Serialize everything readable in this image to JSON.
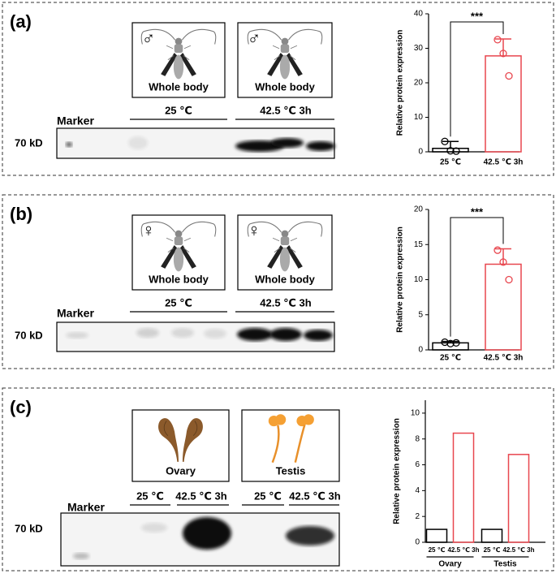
{
  "panels": [
    {
      "label": "(a)",
      "images": [
        {
          "symbol": "♂",
          "caption": "Whole body"
        },
        {
          "symbol": "♂",
          "caption": "Whole body"
        }
      ],
      "marker": "Marker",
      "size": "70 kD",
      "conditions": [
        "25 ℃",
        "42.5 ℃ 3h"
      ]
    },
    {
      "label": "(b)",
      "images": [
        {
          "symbol": "♀",
          "caption": "Whole body"
        },
        {
          "symbol": "♀",
          "caption": "Whole body"
        }
      ],
      "marker": "Marker",
      "size": "70 kD",
      "conditions": [
        "25 ℃",
        "42.5 ℃ 3h"
      ]
    },
    {
      "label": "(c)",
      "images": [
        {
          "caption": "Ovary"
        },
        {
          "caption": "Testis"
        }
      ],
      "marker": "Marker",
      "size": "70 kD",
      "conditions": [
        "25 ℃",
        "42.5 ℃ 3h",
        "25 ℃",
        "42.5 ℃ 3h"
      ]
    }
  ],
  "chart_data": [
    {
      "type": "bar",
      "y_label": "Relative protein expression",
      "categories": [
        "25 ℃",
        "42.5 ℃ 3h"
      ],
      "values": [
        1.0,
        27.8
      ],
      "errors": [
        2.0,
        4.9
      ],
      "points": [
        [
          3.0,
          0.3,
          0.2
        ],
        [
          32.5,
          28.5,
          22.0
        ]
      ],
      "colors": [
        "#000000",
        "#e8474f"
      ],
      "ylim": [
        0,
        40
      ],
      "yticks": [
        0,
        10,
        20,
        30,
        40
      ],
      "significance": "***"
    },
    {
      "type": "bar",
      "y_label": "Relative protein expression",
      "categories": [
        "25 ℃",
        "42.5 ℃ 3h"
      ],
      "values": [
        1.0,
        12.2
      ],
      "errors": [
        0.2,
        2.2
      ],
      "points": [
        [
          1.1,
          0.9,
          1.0
        ],
        [
          14.2,
          12.5,
          10.0
        ]
      ],
      "colors": [
        "#000000",
        "#e8474f"
      ],
      "ylim": [
        0,
        20
      ],
      "yticks": [
        0,
        5,
        10,
        15,
        20
      ],
      "significance": "***"
    },
    {
      "type": "bar",
      "y_label": "Relative protein expression",
      "categories": [
        "25 ℃",
        "42.5 ℃ 3h",
        "25 ℃",
        "42.5 ℃ 3h"
      ],
      "groups": [
        "Ovary",
        "Testis"
      ],
      "values": [
        1.0,
        8.45,
        1.0,
        6.8
      ],
      "colors": [
        "#000000",
        "#e8474f",
        "#000000",
        "#e8474f"
      ],
      "ylim": [
        0,
        11
      ],
      "yticks": [
        0,
        2,
        4,
        6,
        8,
        10
      ]
    }
  ]
}
